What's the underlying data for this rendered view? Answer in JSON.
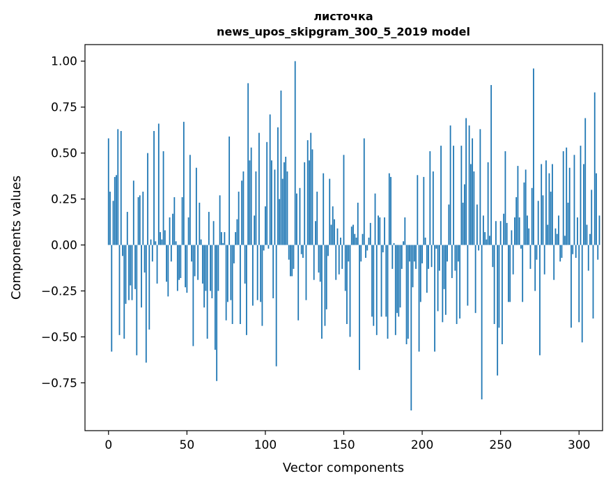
{
  "chart_data": {
    "type": "bar",
    "title": "листочка",
    "subtitle": "news_upos_skipgram_300_5_2019 model",
    "xlabel": "Vector components",
    "ylabel": "Components values",
    "xlim": [
      -15,
      315
    ],
    "ylim": [
      -1.01,
      1.09
    ],
    "xticks": [
      0,
      50,
      100,
      150,
      200,
      250,
      300
    ],
    "yticks": [
      -0.75,
      -0.5,
      -0.25,
      0.0,
      0.25,
      0.5,
      0.75,
      1.0
    ],
    "ytick_labels": [
      "−0.75",
      "−0.50",
      "−0.25",
      "0.00",
      "0.25",
      "0.50",
      "0.75",
      "1.00"
    ],
    "bar_color": "#1f77b4",
    "values": [
      0.58,
      0.29,
      -0.58,
      0.24,
      0.37,
      0.38,
      0.63,
      -0.49,
      0.62,
      -0.06,
      -0.51,
      -0.32,
      0.18,
      -0.3,
      -0.22,
      -0.3,
      0.35,
      -0.24,
      -0.6,
      0.26,
      0.27,
      -0.34,
      0.29,
      -0.15,
      -0.64,
      0.5,
      -0.46,
      0.03,
      -0.09,
      0.62,
      0.02,
      -0.21,
      0.66,
      0.07,
      0.03,
      0.51,
      0.08,
      -0.2,
      -0.28,
      0.15,
      -0.09,
      0.17,
      0.26,
      0.02,
      -0.25,
      -0.19,
      -0.18,
      0.26,
      0.67,
      -0.23,
      -0.26,
      0.15,
      0.49,
      -0.09,
      -0.55,
      -0.17,
      0.42,
      -0.19,
      0.23,
      0.03,
      -0.21,
      -0.34,
      -0.25,
      -0.51,
      0.18,
      -0.25,
      -0.29,
      0.13,
      -0.57,
      -0.74,
      -0.25,
      0.27,
      0.07,
      0.01,
      0.07,
      -0.41,
      -0.31,
      0.59,
      -0.3,
      -0.43,
      -0.1,
      0.07,
      0.14,
      0.29,
      -0.43,
      0.35,
      0.4,
      -0.21,
      -0.49,
      0.88,
      0.46,
      0.53,
      -0.33,
      0.16,
      0.4,
      -0.3,
      0.61,
      -0.31,
      -0.44,
      -0.03,
      0.21,
      0.56,
      -0.02,
      0.71,
      0.46,
      -0.29,
      0.41,
      -0.66,
      0.64,
      0.25,
      0.84,
      0.36,
      0.45,
      0.48,
      0.4,
      -0.08,
      -0.17,
      -0.17,
      -0.13,
      1.0,
      0.28,
      -0.41,
      0.31,
      -0.05,
      -0.07,
      0.45,
      -0.3,
      0.57,
      0.46,
      0.61,
      0.52,
      -0.19,
      0.13,
      0.29,
      -0.15,
      -0.2,
      -0.51,
      0.39,
      -0.44,
      -0.35,
      -0.06,
      0.36,
      0.11,
      0.21,
      0.14,
      -0.19,
      0.09,
      -0.16,
      0.04,
      -0.13,
      0.49,
      -0.25,
      -0.43,
      -0.09,
      -0.5,
      0.1,
      0.11,
      0.06,
      0.04,
      0.23,
      -0.68,
      -0.09,
      0.06,
      0.58,
      -0.07,
      -0.03,
      0.04,
      0.12,
      -0.39,
      -0.44,
      0.28,
      -0.49,
      0.16,
      0.15,
      -0.39,
      -0.04,
      0.15,
      -0.39,
      -0.51,
      0.39,
      0.37,
      -0.13,
      0.01,
      -0.49,
      -0.37,
      -0.39,
      -0.34,
      -0.13,
      0.02,
      0.15,
      -0.54,
      -0.51,
      -0.09,
      -0.9,
      -0.23,
      -0.09,
      -0.13,
      0.38,
      -0.58,
      -0.31,
      -0.1,
      0.37,
      0.04,
      -0.26,
      -0.13,
      0.51,
      -0.12,
      0.4,
      -0.58,
      -0.02,
      -0.36,
      -0.14,
      0.54,
      -0.42,
      -0.24,
      -0.38,
      -0.09,
      0.22,
      0.65,
      -0.18,
      0.54,
      -0.14,
      -0.43,
      -0.09,
      -0.4,
      0.54,
      0.23,
      0.33,
      0.69,
      -0.33,
      0.65,
      0.44,
      0.58,
      0.4,
      -0.37,
      0.22,
      -0.03,
      0.63,
      -0.84,
      0.16,
      0.07,
      0.03,
      0.45,
      0.05,
      0.87,
      -0.12,
      -0.43,
      0.13,
      -0.71,
      -0.45,
      0.13,
      -0.54,
      0.17,
      0.51,
      0.12,
      -0.31,
      -0.31,
      0.08,
      -0.16,
      0.15,
      0.26,
      0.43,
      0.15,
      -0.02,
      -0.31,
      0.34,
      0.41,
      0.16,
      0.09,
      -0.13,
      0.31,
      0.96,
      -0.25,
      -0.08,
      0.24,
      -0.6,
      0.44,
      0.27,
      -0.16,
      0.46,
      0.11,
      0.39,
      0.29,
      0.44,
      -0.19,
      0.09,
      0.06,
      0.16,
      -0.09,
      -0.07,
      0.51,
      0.05,
      0.53,
      0.23,
      0.42,
      -0.45,
      -0.05,
      0.49,
      -0.07,
      0.15,
      -0.42,
      0.54,
      -0.53,
      0.44,
      0.69,
      0.11,
      -0.14,
      0.06,
      0.3,
      -0.4,
      0.83,
      0.39,
      -0.08,
      0.16
    ]
  }
}
